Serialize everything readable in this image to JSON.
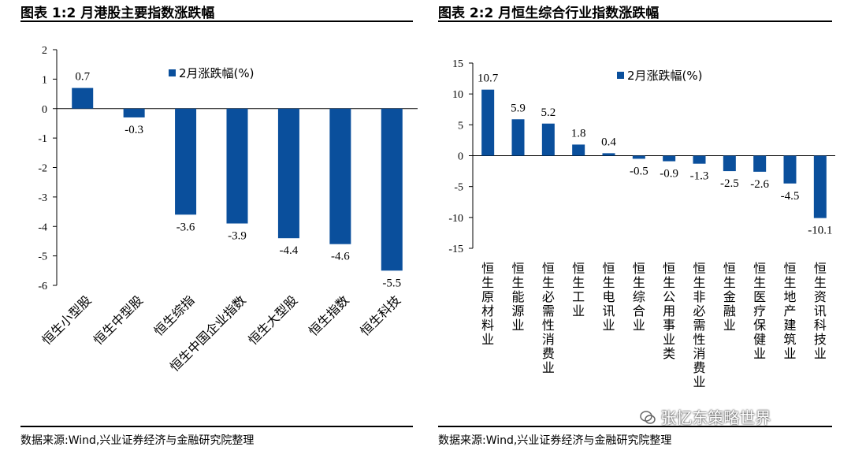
{
  "titles": {
    "left": "图表 1:2 月港股主要指数涨跌幅",
    "right": "图表 2:2 月恒生综合行业指数涨跌幅"
  },
  "sources": {
    "left": "数据来源:Wind,兴业证券经济与金融研究院整理",
    "right": "数据来源:Wind,兴业证券经济与金融研究院整理"
  },
  "watermark": "张忆东策略世界",
  "colors": {
    "bar": "#0a4f9c",
    "axis": "#000000"
  },
  "chart_data": [
    {
      "type": "bar",
      "title": "2 月港股主要指数涨跌幅",
      "legend": "2月涨跌幅(%)",
      "legend_position": "top-right",
      "categories": [
        "恒生小型股",
        "恒生中型股",
        "恒生综指",
        "恒生中国企业指数",
        "恒生大型股",
        "恒生指数",
        "恒生科技"
      ],
      "values": [
        0.7,
        -0.3,
        -3.6,
        -3.9,
        -4.4,
        -4.6,
        -5.5
      ],
      "data_labels": [
        "0.7",
        "-0.3",
        "-3.6",
        "-3.9",
        "-4.4",
        "-4.6",
        "-5.5"
      ],
      "ylim": [
        -6,
        2
      ],
      "yticks": [
        2,
        1,
        0,
        -1,
        -2,
        -3,
        -4,
        -5,
        -6
      ],
      "grid": false
    },
    {
      "type": "bar",
      "title": "2 月恒生综合行业指数涨跌幅",
      "legend": "2月涨跌幅(%)",
      "legend_position": "top-right",
      "categories": [
        "恒生原材料业",
        "恒生能源业",
        "恒生必需性消费业",
        "恒生工业",
        "恒生电讯业",
        "恒生综合业",
        "恒生公用事业类",
        "恒生非必需性消费业",
        "恒生金融业",
        "恒生医疗保健业",
        "恒生地产建筑业",
        "恒生资讯科技业"
      ],
      "values": [
        10.7,
        5.9,
        5.2,
        1.8,
        0.4,
        -0.5,
        -0.9,
        -1.3,
        -2.5,
        -2.6,
        -4.5,
        -10.1
      ],
      "data_labels": [
        "10.7",
        "5.9",
        "5.2",
        "1.8",
        "0.4",
        "-0.5",
        "-0.9",
        "-1.3",
        "-2.5",
        "-2.6",
        "-4.5",
        "-10.1"
      ],
      "ylim": [
        -15,
        15
      ],
      "yticks": [
        15,
        10,
        5,
        0,
        -5,
        -10,
        -15
      ],
      "grid": false
    }
  ]
}
